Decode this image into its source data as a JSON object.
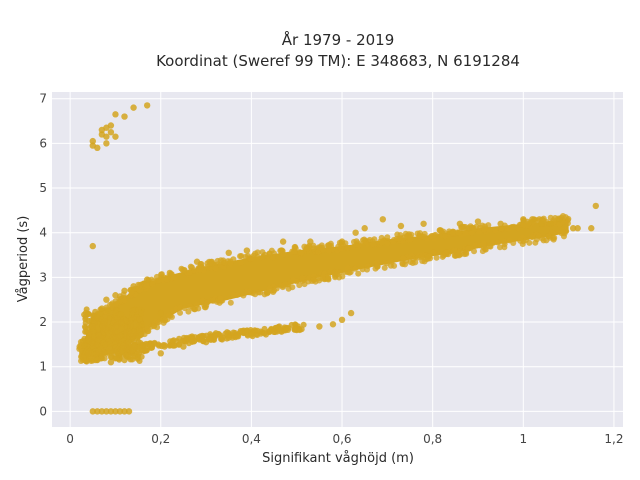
{
  "chart_data": {
    "type": "scatter",
    "title_lines": [
      "År 1979 - 2019",
      "Koordinat (Sweref 99 TM): E 348683, N 6191284"
    ],
    "xlabel": "Signifikant våghöjd (m)",
    "ylabel": "Vågperiod (s)",
    "xlim": [
      -0.04,
      1.22
    ],
    "ylim": [
      -0.35,
      7.15
    ],
    "x_ticks": [
      0,
      0.2,
      0.4,
      0.6,
      0.8,
      1.0,
      1.2
    ],
    "x_tick_labels": [
      "0",
      "0,2",
      "0,4",
      "0,6",
      "0,8",
      "1",
      "1,2"
    ],
    "y_ticks": [
      0,
      1,
      2,
      3,
      4,
      5,
      6,
      7
    ],
    "y_tick_labels": [
      "0",
      "1",
      "2",
      "3",
      "4",
      "5",
      "6",
      "7"
    ],
    "grid": true,
    "colors": {
      "marker": "#D4A520",
      "plot_bg": "#E8E8F0",
      "grid": "#FFFFFF"
    },
    "series": [
      {
        "points": [
          [
            0.05,
            0
          ],
          [
            0.06,
            0
          ],
          [
            0.07,
            0
          ],
          [
            0.08,
            0
          ],
          [
            0.09,
            0
          ],
          [
            0.1,
            0
          ],
          [
            0.11,
            0
          ],
          [
            0.12,
            0
          ],
          [
            0.13,
            0
          ],
          [
            0.05,
            5.95
          ],
          [
            0.05,
            6.05
          ],
          [
            0.06,
            5.9
          ],
          [
            0.07,
            6.2
          ],
          [
            0.07,
            6.3
          ],
          [
            0.08,
            6.15
          ],
          [
            0.08,
            6.35
          ],
          [
            0.08,
            6.0
          ],
          [
            0.09,
            6.4
          ],
          [
            0.09,
            6.25
          ],
          [
            0.1,
            6.65
          ],
          [
            0.1,
            6.15
          ],
          [
            0.12,
            6.6
          ],
          [
            0.14,
            6.8
          ],
          [
            0.17,
            6.85
          ],
          [
            0.05,
            3.7
          ],
          [
            0.03,
            1.2
          ],
          [
            0.04,
            1.3
          ],
          [
            0.04,
            1.6
          ],
          [
            0.05,
            1.9
          ],
          [
            0.06,
            2.1
          ],
          [
            0.07,
            2.3
          ],
          [
            0.08,
            2.5
          ],
          [
            0.1,
            2.6
          ],
          [
            0.12,
            2.7
          ],
          [
            0.14,
            2.8
          ],
          [
            0.17,
            2.95
          ],
          [
            0.06,
            1.15
          ],
          [
            0.09,
            1.1
          ],
          [
            0.12,
            1.15
          ],
          [
            0.15,
            1.2
          ],
          [
            0.2,
            1.3
          ],
          [
            0.25,
            1.45
          ],
          [
            0.3,
            1.55
          ],
          [
            0.35,
            1.65
          ],
          [
            0.4,
            1.72
          ],
          [
            0.45,
            1.78
          ],
          [
            0.5,
            1.85
          ],
          [
            0.55,
            1.9
          ],
          [
            0.58,
            1.95
          ],
          [
            0.6,
            2.05
          ],
          [
            0.62,
            2.2
          ],
          [
            0.2,
            2.2
          ],
          [
            0.22,
            3.1
          ],
          [
            0.28,
            3.35
          ],
          [
            0.35,
            3.55
          ],
          [
            0.39,
            3.6
          ],
          [
            0.43,
            3.5
          ],
          [
            0.47,
            3.8
          ],
          [
            0.53,
            3.8
          ],
          [
            0.6,
            3.8
          ],
          [
            0.63,
            4.0
          ],
          [
            0.65,
            4.1
          ],
          [
            0.69,
            4.3
          ],
          [
            0.73,
            4.15
          ],
          [
            0.78,
            4.2
          ],
          [
            0.86,
            4.2
          ],
          [
            0.88,
            4.1
          ],
          [
            0.9,
            4.25
          ],
          [
            0.95,
            4.2
          ],
          [
            1.0,
            4.3
          ],
          [
            1.02,
            4.3
          ],
          [
            1.04,
            4.2
          ],
          [
            1.06,
            4.2
          ],
          [
            1.08,
            4.3
          ],
          [
            1.11,
            4.1
          ],
          [
            1.12,
            4.1
          ],
          [
            1.15,
            4.1
          ],
          [
            1.16,
            4.6
          ]
        ],
        "band_upper": [
          [
            0.02,
            1.4
          ],
          [
            0.05,
            2.0
          ],
          [
            0.1,
            2.45
          ],
          [
            0.15,
            2.75
          ],
          [
            0.2,
            3.0
          ],
          [
            0.3,
            3.25
          ],
          [
            0.4,
            3.45
          ],
          [
            0.5,
            3.6
          ],
          [
            0.6,
            3.7
          ],
          [
            0.7,
            3.85
          ],
          [
            0.8,
            3.95
          ],
          [
            0.9,
            4.1
          ],
          [
            1.0,
            4.2
          ],
          [
            1.1,
            4.3
          ]
        ],
        "band_lower": [
          [
            0.02,
            1.2
          ],
          [
            0.05,
            1.2
          ],
          [
            0.1,
            1.3
          ],
          [
            0.13,
            1.5
          ],
          [
            0.18,
            1.9
          ],
          [
            0.25,
            2.3
          ],
          [
            0.35,
            2.5
          ],
          [
            0.45,
            2.75
          ],
          [
            0.55,
            3.0
          ],
          [
            0.65,
            3.2
          ],
          [
            0.75,
            3.4
          ],
          [
            0.85,
            3.55
          ],
          [
            0.95,
            3.75
          ],
          [
            1.05,
            3.9
          ],
          [
            1.1,
            4.0
          ]
        ],
        "lower_branch": [
          [
            0.1,
            1.3
          ],
          [
            0.2,
            1.5
          ],
          [
            0.3,
            1.65
          ],
          [
            0.4,
            1.75
          ],
          [
            0.48,
            1.85
          ],
          [
            0.52,
            1.9
          ]
        ]
      }
    ]
  }
}
